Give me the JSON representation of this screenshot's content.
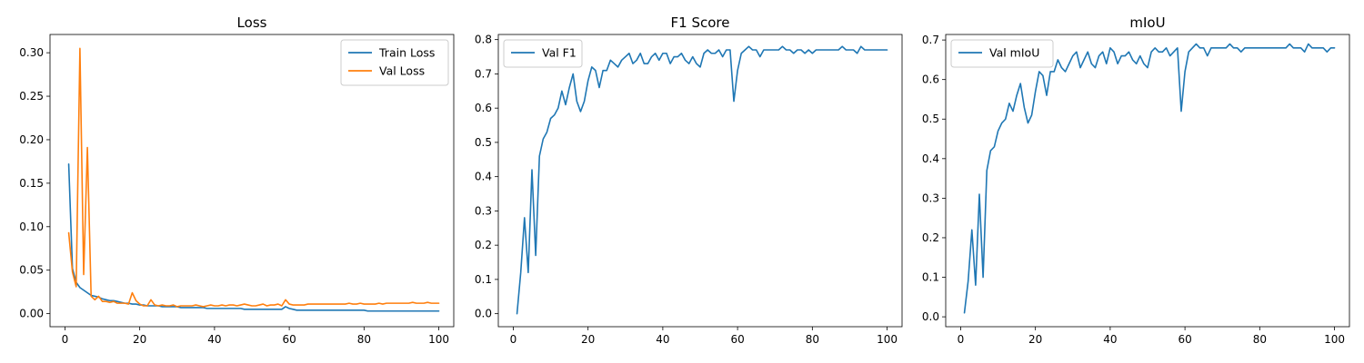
{
  "chart_data": [
    {
      "type": "line",
      "title": "Loss",
      "xlabel": "",
      "ylabel": "",
      "xlim": [
        -4,
        104
      ],
      "ylim": [
        -0.015,
        0.321
      ],
      "xticks": [
        0,
        20,
        40,
        60,
        80,
        100
      ],
      "yticks": [
        0.0,
        0.05,
        0.1,
        0.15,
        0.2,
        0.25,
        0.3
      ],
      "ytick_labels": [
        "0.00",
        "0.05",
        "0.10",
        "0.15",
        "0.20",
        "0.25",
        "0.30"
      ],
      "grid": false,
      "legend": "top-right",
      "x": [
        1,
        2,
        3,
        4,
        5,
        6,
        7,
        8,
        9,
        10,
        11,
        12,
        13,
        14,
        15,
        16,
        17,
        18,
        19,
        20,
        21,
        22,
        23,
        24,
        25,
        26,
        27,
        28,
        29,
        30,
        31,
        32,
        33,
        34,
        35,
        36,
        37,
        38,
        39,
        40,
        41,
        42,
        43,
        44,
        45,
        46,
        47,
        48,
        49,
        50,
        51,
        52,
        53,
        54,
        55,
        56,
        57,
        58,
        59,
        60,
        61,
        62,
        63,
        64,
        65,
        66,
        67,
        68,
        69,
        70,
        71,
        72,
        73,
        74,
        75,
        76,
        77,
        78,
        79,
        80,
        81,
        82,
        83,
        84,
        85,
        86,
        87,
        88,
        89,
        90,
        91,
        92,
        93,
        94,
        95,
        96,
        97,
        98,
        99,
        100
      ],
      "series": [
        {
          "name": "Train Loss",
          "color": "#1f77b4",
          "values": [
            0.172,
            0.052,
            0.036,
            0.03,
            0.027,
            0.024,
            0.021,
            0.02,
            0.019,
            0.017,
            0.016,
            0.015,
            0.015,
            0.014,
            0.013,
            0.012,
            0.012,
            0.011,
            0.011,
            0.01,
            0.01,
            0.009,
            0.009,
            0.009,
            0.009,
            0.008,
            0.008,
            0.008,
            0.008,
            0.008,
            0.007,
            0.007,
            0.007,
            0.007,
            0.007,
            0.007,
            0.007,
            0.006,
            0.006,
            0.006,
            0.006,
            0.006,
            0.006,
            0.006,
            0.006,
            0.006,
            0.006,
            0.005,
            0.005,
            0.005,
            0.005,
            0.005,
            0.005,
            0.005,
            0.005,
            0.005,
            0.005,
            0.005,
            0.008,
            0.006,
            0.005,
            0.004,
            0.004,
            0.004,
            0.004,
            0.004,
            0.004,
            0.004,
            0.004,
            0.004,
            0.004,
            0.004,
            0.004,
            0.004,
            0.004,
            0.004,
            0.004,
            0.004,
            0.004,
            0.004,
            0.003,
            0.003,
            0.003,
            0.003,
            0.003,
            0.003,
            0.003,
            0.003,
            0.003,
            0.003,
            0.003,
            0.003,
            0.003,
            0.003,
            0.003,
            0.003,
            0.003,
            0.003,
            0.003,
            0.003
          ]
        },
        {
          "name": "Val Loss",
          "color": "#ff7f0e",
          "values": [
            0.093,
            0.048,
            0.031,
            0.305,
            0.045,
            0.191,
            0.02,
            0.016,
            0.02,
            0.014,
            0.014,
            0.013,
            0.014,
            0.012,
            0.012,
            0.012,
            0.011,
            0.024,
            0.015,
            0.011,
            0.009,
            0.009,
            0.016,
            0.01,
            0.009,
            0.01,
            0.009,
            0.009,
            0.01,
            0.008,
            0.009,
            0.009,
            0.009,
            0.009,
            0.01,
            0.009,
            0.008,
            0.009,
            0.01,
            0.009,
            0.009,
            0.01,
            0.009,
            0.01,
            0.01,
            0.009,
            0.01,
            0.011,
            0.01,
            0.009,
            0.009,
            0.01,
            0.011,
            0.009,
            0.01,
            0.01,
            0.011,
            0.009,
            0.016,
            0.011,
            0.01,
            0.01,
            0.01,
            0.01,
            0.011,
            0.011,
            0.011,
            0.011,
            0.011,
            0.011,
            0.011,
            0.011,
            0.011,
            0.011,
            0.011,
            0.012,
            0.011,
            0.011,
            0.012,
            0.011,
            0.011,
            0.011,
            0.011,
            0.012,
            0.011,
            0.012,
            0.012,
            0.012,
            0.012,
            0.012,
            0.012,
            0.012,
            0.013,
            0.012,
            0.012,
            0.012,
            0.013,
            0.012,
            0.012,
            0.012
          ]
        }
      ]
    },
    {
      "type": "line",
      "title": "F1 Score",
      "xlabel": "",
      "ylabel": "",
      "xlim": [
        -4,
        104
      ],
      "ylim": [
        -0.038,
        0.815
      ],
      "xticks": [
        0,
        20,
        40,
        60,
        80,
        100
      ],
      "yticks": [
        0.0,
        0.1,
        0.2,
        0.3,
        0.4,
        0.5,
        0.6,
        0.7,
        0.8
      ],
      "ytick_labels": [
        "0.0",
        "0.1",
        "0.2",
        "0.3",
        "0.4",
        "0.5",
        "0.6",
        "0.7",
        "0.8"
      ],
      "grid": false,
      "legend": "top-left",
      "x": [
        1,
        2,
        3,
        4,
        5,
        6,
        7,
        8,
        9,
        10,
        11,
        12,
        13,
        14,
        15,
        16,
        17,
        18,
        19,
        20,
        21,
        22,
        23,
        24,
        25,
        26,
        27,
        28,
        29,
        30,
        31,
        32,
        33,
        34,
        35,
        36,
        37,
        38,
        39,
        40,
        41,
        42,
        43,
        44,
        45,
        46,
        47,
        48,
        49,
        50,
        51,
        52,
        53,
        54,
        55,
        56,
        57,
        58,
        59,
        60,
        61,
        62,
        63,
        64,
        65,
        66,
        67,
        68,
        69,
        70,
        71,
        72,
        73,
        74,
        75,
        76,
        77,
        78,
        79,
        80,
        81,
        82,
        83,
        84,
        85,
        86,
        87,
        88,
        89,
        90,
        91,
        92,
        93,
        94,
        95,
        96,
        97,
        98,
        99,
        100
      ],
      "series": [
        {
          "name": "Val F1",
          "color": "#1f77b4",
          "values": [
            0.0,
            0.12,
            0.28,
            0.12,
            0.42,
            0.17,
            0.46,
            0.51,
            0.53,
            0.57,
            0.58,
            0.6,
            0.65,
            0.61,
            0.66,
            0.7,
            0.62,
            0.59,
            0.62,
            0.68,
            0.72,
            0.71,
            0.66,
            0.71,
            0.71,
            0.74,
            0.73,
            0.72,
            0.74,
            0.75,
            0.76,
            0.73,
            0.74,
            0.76,
            0.73,
            0.73,
            0.75,
            0.76,
            0.74,
            0.76,
            0.76,
            0.73,
            0.75,
            0.75,
            0.76,
            0.74,
            0.73,
            0.75,
            0.73,
            0.72,
            0.76,
            0.77,
            0.76,
            0.76,
            0.77,
            0.75,
            0.77,
            0.77,
            0.62,
            0.71,
            0.76,
            0.77,
            0.78,
            0.77,
            0.77,
            0.75,
            0.77,
            0.77,
            0.77,
            0.77,
            0.77,
            0.78,
            0.77,
            0.77,
            0.76,
            0.77,
            0.77,
            0.76,
            0.77,
            0.76,
            0.77,
            0.77,
            0.77,
            0.77,
            0.77,
            0.77,
            0.77,
            0.78,
            0.77,
            0.77,
            0.77,
            0.76,
            0.78,
            0.77,
            0.77,
            0.77,
            0.77,
            0.77,
            0.77,
            0.77
          ]
        }
      ]
    },
    {
      "type": "line",
      "title": "mIoU",
      "xlabel": "",
      "ylabel": "",
      "xlim": [
        -4,
        104
      ],
      "ylim": [
        -0.025,
        0.714
      ],
      "xticks": [
        0,
        20,
        40,
        60,
        80,
        100
      ],
      "yticks": [
        0.0,
        0.1,
        0.2,
        0.3,
        0.4,
        0.5,
        0.6,
        0.7
      ],
      "ytick_labels": [
        "0.0",
        "0.1",
        "0.2",
        "0.3",
        "0.4",
        "0.5",
        "0.6",
        "0.7"
      ],
      "grid": false,
      "legend": "top-left",
      "x": [
        1,
        2,
        3,
        4,
        5,
        6,
        7,
        8,
        9,
        10,
        11,
        12,
        13,
        14,
        15,
        16,
        17,
        18,
        19,
        20,
        21,
        22,
        23,
        24,
        25,
        26,
        27,
        28,
        29,
        30,
        31,
        32,
        33,
        34,
        35,
        36,
        37,
        38,
        39,
        40,
        41,
        42,
        43,
        44,
        45,
        46,
        47,
        48,
        49,
        50,
        51,
        52,
        53,
        54,
        55,
        56,
        57,
        58,
        59,
        60,
        61,
        62,
        63,
        64,
        65,
        66,
        67,
        68,
        69,
        70,
        71,
        72,
        73,
        74,
        75,
        76,
        77,
        78,
        79,
        80,
        81,
        82,
        83,
        84,
        85,
        86,
        87,
        88,
        89,
        90,
        91,
        92,
        93,
        94,
        95,
        96,
        97,
        98,
        99,
        100
      ],
      "series": [
        {
          "name": "Val mIoU",
          "color": "#1f77b4",
          "values": [
            0.01,
            0.09,
            0.22,
            0.08,
            0.31,
            0.1,
            0.37,
            0.42,
            0.43,
            0.47,
            0.49,
            0.5,
            0.54,
            0.52,
            0.56,
            0.59,
            0.53,
            0.49,
            0.51,
            0.57,
            0.62,
            0.61,
            0.56,
            0.62,
            0.62,
            0.65,
            0.63,
            0.62,
            0.64,
            0.66,
            0.67,
            0.63,
            0.65,
            0.67,
            0.64,
            0.63,
            0.66,
            0.67,
            0.64,
            0.68,
            0.67,
            0.64,
            0.66,
            0.66,
            0.67,
            0.65,
            0.64,
            0.66,
            0.64,
            0.63,
            0.67,
            0.68,
            0.67,
            0.67,
            0.68,
            0.66,
            0.67,
            0.68,
            0.52,
            0.62,
            0.67,
            0.68,
            0.69,
            0.68,
            0.68,
            0.66,
            0.68,
            0.68,
            0.68,
            0.68,
            0.68,
            0.69,
            0.68,
            0.68,
            0.67,
            0.68,
            0.68,
            0.68,
            0.68,
            0.68,
            0.68,
            0.68,
            0.68,
            0.68,
            0.68,
            0.68,
            0.68,
            0.69,
            0.68,
            0.68,
            0.68,
            0.67,
            0.69,
            0.68,
            0.68,
            0.68,
            0.68,
            0.67,
            0.68,
            0.68
          ]
        }
      ]
    }
  ]
}
